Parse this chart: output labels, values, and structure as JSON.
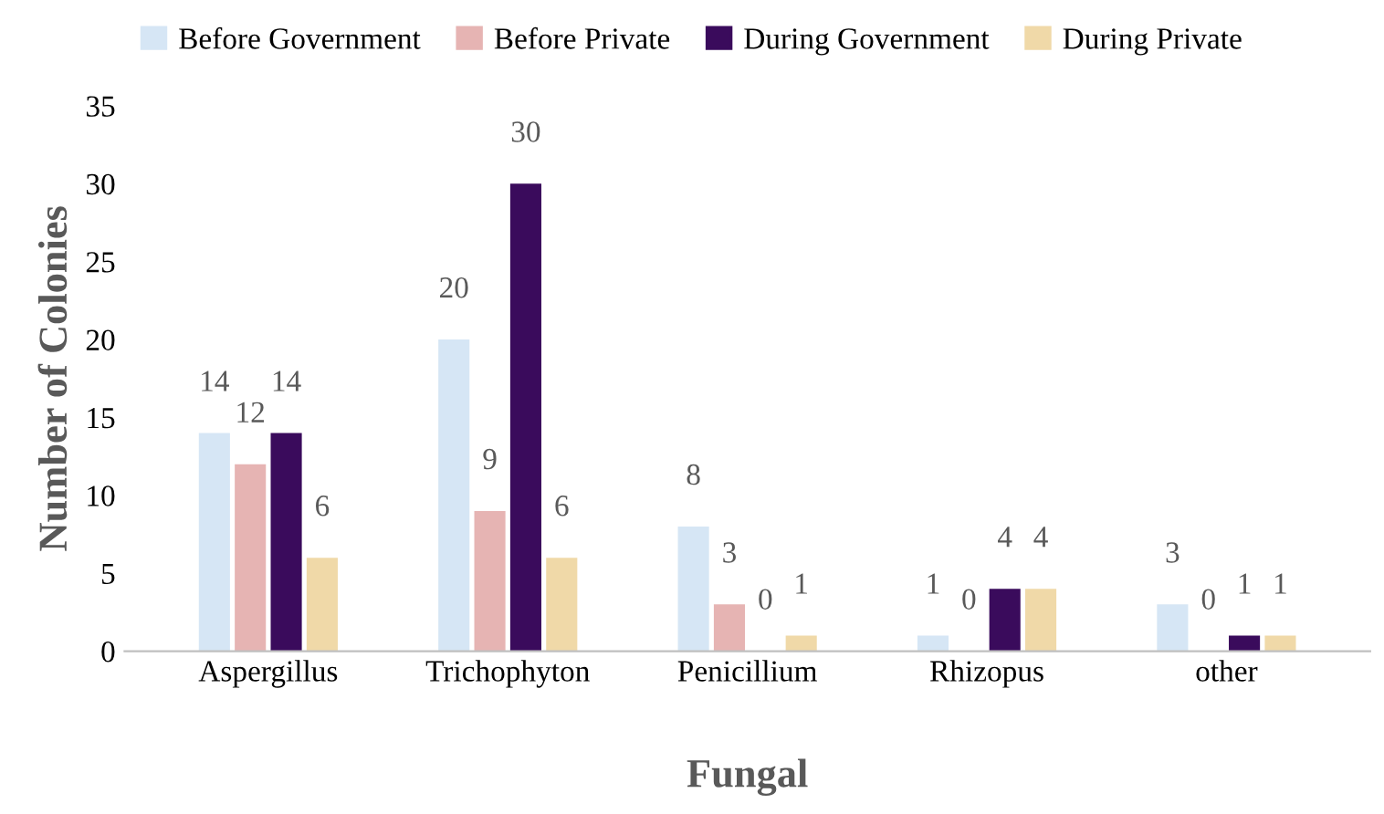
{
  "chart_data": {
    "type": "bar",
    "xlabel": "Fungal",
    "ylabel": "Number of Colonies",
    "categories": [
      "Aspergillus",
      "Trichophyton",
      "Penicillium",
      "Rhizopus",
      "other"
    ],
    "series": [
      {
        "name": "Before Government",
        "color": "#d6e6f5",
        "values": [
          14,
          20,
          8,
          1,
          3
        ]
      },
      {
        "name": "Before Private",
        "color": "#e6b4b3",
        "values": [
          12,
          9,
          3,
          0,
          0
        ]
      },
      {
        "name": "During Government",
        "color": "#3a0b5c",
        "values": [
          14,
          30,
          0,
          4,
          1
        ]
      },
      {
        "name": "During Private",
        "color": "#f0d9a8",
        "values": [
          6,
          6,
          1,
          4,
          1
        ]
      }
    ],
    "ylim": [
      0,
      35
    ],
    "yticks": [
      0,
      5,
      10,
      15,
      20,
      25,
      30,
      35
    ],
    "grid": false,
    "legend": "top",
    "data_labels": true
  }
}
